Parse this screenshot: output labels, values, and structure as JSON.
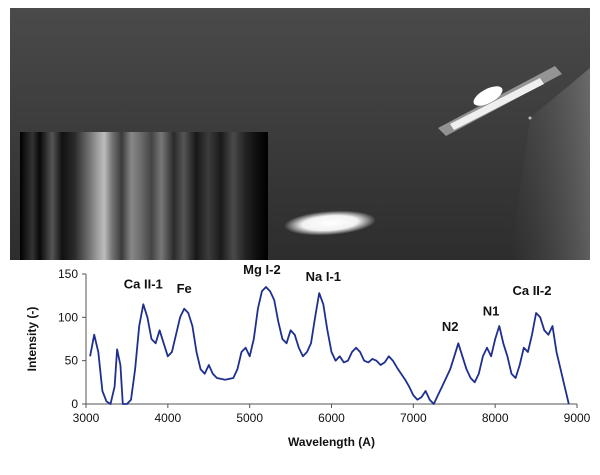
{
  "photo": {
    "description_icon": "meteor-spectrum-photo"
  },
  "chart_data": {
    "type": "line",
    "xlabel": "Wavelength (A)",
    "ylabel": "Intensity (-)",
    "xlim": [
      3000,
      9000
    ],
    "ylim": [
      0,
      150
    ],
    "xticks": [
      "3000",
      "4000",
      "5000",
      "6000",
      "7000",
      "8000",
      "9000"
    ],
    "yticks": [
      "0",
      "50",
      "100",
      "150"
    ],
    "grid": false,
    "line_color": "#1f2f8f",
    "series": [
      {
        "x": [
          3050,
          3100,
          3150,
          3200,
          3250,
          3300,
          3350,
          3380,
          3420,
          3450,
          3500,
          3550,
          3600,
          3650,
          3700,
          3750,
          3800,
          3850,
          3900,
          3950,
          4000,
          4050,
          4100,
          4150,
          4200,
          4250,
          4300,
          4350,
          4400,
          4450,
          4500,
          4550,
          4600,
          4700,
          4800,
          4850,
          4900,
          4950,
          5000,
          5050,
          5100,
          5150,
          5200,
          5250,
          5300,
          5350,
          5400,
          5450,
          5500,
          5550,
          5600,
          5650,
          5700,
          5750,
          5800,
          5850,
          5900,
          5950,
          6000,
          6050,
          6100,
          6150,
          6200,
          6250,
          6300,
          6350,
          6400,
          6450,
          6500,
          6550,
          6600,
          6650,
          6700,
          6750,
          6800,
          6850,
          6900,
          6950,
          7000,
          7050,
          7100,
          7150,
          7200,
          7250,
          7300,
          7350,
          7400,
          7450,
          7500,
          7550,
          7600,
          7650,
          7700,
          7750,
          7800,
          7850,
          7900,
          7950,
          8000,
          8050,
          8100,
          8150,
          8200,
          8250,
          8300,
          8350,
          8400,
          8450,
          8500,
          8550,
          8600,
          8650,
          8700,
          8750,
          8800,
          8850,
          8900
        ],
        "y": [
          55,
          80,
          60,
          15,
          3,
          0,
          20,
          63,
          45,
          0,
          0,
          5,
          40,
          90,
          115,
          100,
          75,
          70,
          85,
          70,
          55,
          60,
          80,
          100,
          110,
          105,
          90,
          60,
          40,
          35,
          45,
          35,
          30,
          28,
          30,
          40,
          60,
          65,
          55,
          75,
          110,
          130,
          135,
          130,
          120,
          95,
          75,
          70,
          85,
          80,
          65,
          55,
          60,
          70,
          100,
          128,
          115,
          85,
          60,
          50,
          55,
          48,
          50,
          60,
          65,
          60,
          50,
          48,
          52,
          50,
          45,
          48,
          55,
          50,
          42,
          35,
          28,
          20,
          10,
          5,
          8,
          15,
          5,
          0,
          10,
          20,
          30,
          40,
          55,
          70,
          55,
          40,
          30,
          25,
          35,
          55,
          65,
          55,
          75,
          90,
          70,
          55,
          35,
          30,
          45,
          65,
          60,
          80,
          105,
          100,
          85,
          80,
          90,
          60,
          40,
          20,
          0
        ]
      }
    ],
    "annotations": [
      {
        "text": "Ca II-1",
        "x": 3700,
        "y": 133
      },
      {
        "text": "Fe",
        "x": 4200,
        "y": 128
      },
      {
        "text": "Mg I-2",
        "x": 5150,
        "y": 150
      },
      {
        "text": "Na I-1",
        "x": 5900,
        "y": 142
      },
      {
        "text": "N2",
        "x": 7450,
        "y": 84
      },
      {
        "text": "N1",
        "x": 7950,
        "y": 102
      },
      {
        "text": "Ca II-2",
        "x": 8450,
        "y": 126
      }
    ]
  }
}
